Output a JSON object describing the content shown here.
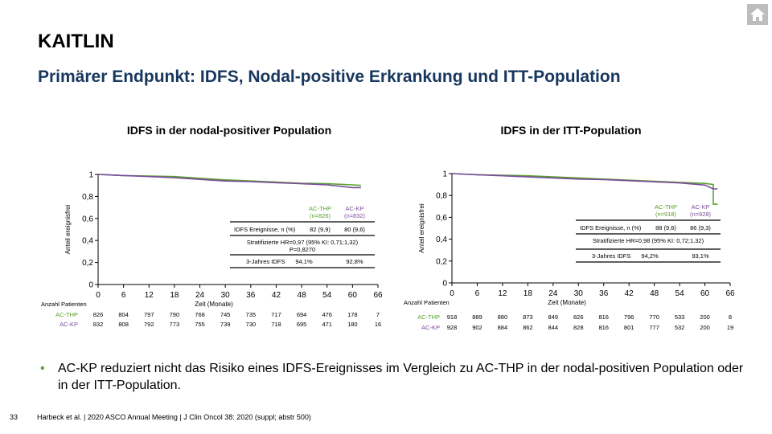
{
  "header": {
    "title": "KAITLIN",
    "subtitle": "Primärer Endpunkt: IDFS, Nodal-positive Erkrankung und ITT-Population"
  },
  "nav": {
    "home_icon": "home-icon"
  },
  "colors": {
    "thp": "#5aa02c",
    "kp": "#7a4c9c",
    "title": "#17375e"
  },
  "chart_data": [
    {
      "type": "line",
      "title": "IDFS in der nodal-positiver Population",
      "ylabel": "Anteil ereignisfrei",
      "xlabel": "Zeit (Monate)",
      "x_ticks": [
        0,
        6,
        12,
        18,
        24,
        30,
        36,
        42,
        48,
        54,
        60,
        66
      ],
      "y_ticks": [
        "0",
        "0,2",
        "0,4",
        "0,6",
        "0,8",
        "1"
      ],
      "xlim": [
        0,
        66
      ],
      "ylim": [
        0,
        1
      ],
      "series": [
        {
          "name": "AC-THP",
          "n_label": "(n=826)",
          "color": "#5aa02c",
          "points": [
            [
              0,
              1
            ],
            [
              6,
              0.99
            ],
            [
              12,
              0.985
            ],
            [
              18,
              0.98
            ],
            [
              24,
              0.965
            ],
            [
              30,
              0.95
            ],
            [
              36,
              0.94
            ],
            [
              42,
              0.93
            ],
            [
              48,
              0.92
            ],
            [
              54,
              0.915
            ],
            [
              60,
              0.905
            ],
            [
              62,
              0.9
            ]
          ]
        },
        {
          "name": "AC-KP",
          "n_label": "(n=832)",
          "color": "#7a4c9c",
          "points": [
            [
              0,
              1
            ],
            [
              6,
              0.99
            ],
            [
              12,
              0.98
            ],
            [
              18,
              0.97
            ],
            [
              24,
              0.955
            ],
            [
              30,
              0.94
            ],
            [
              36,
              0.935
            ],
            [
              42,
              0.925
            ],
            [
              48,
              0.915
            ],
            [
              54,
              0.905
            ],
            [
              60,
              0.88
            ],
            [
              62,
              0.88
            ]
          ]
        }
      ],
      "stats": {
        "events_label": "IDFS Ereignisse, n (%)",
        "events": [
          "82 (9,9)",
          "80 (9,6)"
        ],
        "hr_line1": "Stratifizierte HR=0,97 (95% KI: 0,71;1,32)",
        "hr_line2": "P=0,8270",
        "three_year_label": "3-Jahres IDFS",
        "three_year": [
          "94,1%",
          "92,8%"
        ]
      },
      "at_risk": {
        "label": "Anzahl Patienten",
        "rows": [
          {
            "name": "AC-THP",
            "values": [
              "826",
              "804",
              "797",
              "790",
              "768",
              "745",
              "735",
              "717",
              "694",
              "476",
              "178",
              "7"
            ]
          },
          {
            "name": "AC-KP",
            "values": [
              "832",
              "808",
              "792",
              "773",
              "755",
              "739",
              "730",
              "718",
              "695",
              "471",
              "180",
              "16"
            ]
          }
        ]
      }
    },
    {
      "type": "line",
      "title": "IDFS in der ITT-Population",
      "ylabel": "Anteil ereignisfrei",
      "xlabel": "Zeit (Monate)",
      "x_ticks": [
        0,
        6,
        12,
        18,
        24,
        30,
        36,
        42,
        48,
        54,
        60,
        66
      ],
      "y_ticks": [
        "0",
        "0,2",
        "0,4",
        "0,6",
        "0,8",
        "1"
      ],
      "xlim": [
        0,
        66
      ],
      "ylim": [
        0,
        1
      ],
      "series": [
        {
          "name": "AC-THP",
          "n_label": "(n=918)",
          "color": "#5aa02c",
          "points": [
            [
              0,
              1
            ],
            [
              6,
              0.99
            ],
            [
              12,
              0.985
            ],
            [
              18,
              0.98
            ],
            [
              24,
              0.97
            ],
            [
              30,
              0.96
            ],
            [
              36,
              0.95
            ],
            [
              42,
              0.94
            ],
            [
              48,
              0.93
            ],
            [
              54,
              0.92
            ],
            [
              60,
              0.91
            ],
            [
              62,
              0.9
            ],
            [
              62,
              0.72
            ],
            [
              63,
              0.72
            ]
          ]
        },
        {
          "name": "AC-KP",
          "n_label": "(n=928)",
          "color": "#7a4c9c",
          "points": [
            [
              0,
              1
            ],
            [
              6,
              0.99
            ],
            [
              12,
              0.98
            ],
            [
              18,
              0.97
            ],
            [
              24,
              0.96
            ],
            [
              30,
              0.95
            ],
            [
              36,
              0.945
            ],
            [
              42,
              0.935
            ],
            [
              48,
              0.925
            ],
            [
              54,
              0.915
            ],
            [
              60,
              0.895
            ],
            [
              62,
              0.86
            ],
            [
              63,
              0.86
            ]
          ]
        }
      ],
      "stats": {
        "events_label": "IDFS Ereignisse, n (%)",
        "events": [
          "88 (9,6)",
          "86 (9,3)"
        ],
        "hr_line1": "Stratifizierte HR=0,98 (95% KI: 0,72;1,32)",
        "hr_line2": "",
        "three_year_label": "3-Jahres IDFS",
        "three_year": [
          "94,2%",
          "93,1%"
        ]
      },
      "at_risk": {
        "label": "Anzahl Patienten",
        "rows": [
          {
            "name": "AC-THP",
            "values": [
              "918",
              "889",
              "880",
              "873",
              "849",
              "826",
              "816",
              "796",
              "770",
              "533",
              "200",
              "8"
            ]
          },
          {
            "name": "AC-KP",
            "values": [
              "928",
              "902",
              "884",
              "862",
              "844",
              "828",
              "816",
              "801",
              "777",
              "532",
              "200",
              "19"
            ]
          }
        ]
      }
    }
  ],
  "bullet": {
    "text": "AC-KP reduziert nicht das Risiko eines IDFS-Ereignisses im Vergleich zu AC-THP in der nodal-positiven Population oder in der ITT-Population."
  },
  "footer": {
    "page": "33",
    "reference": "Harbeck et al. | 2020 ASCO Annual Meeting | J Clin Oncol 38: 2020 (suppl; abstr 500)"
  }
}
